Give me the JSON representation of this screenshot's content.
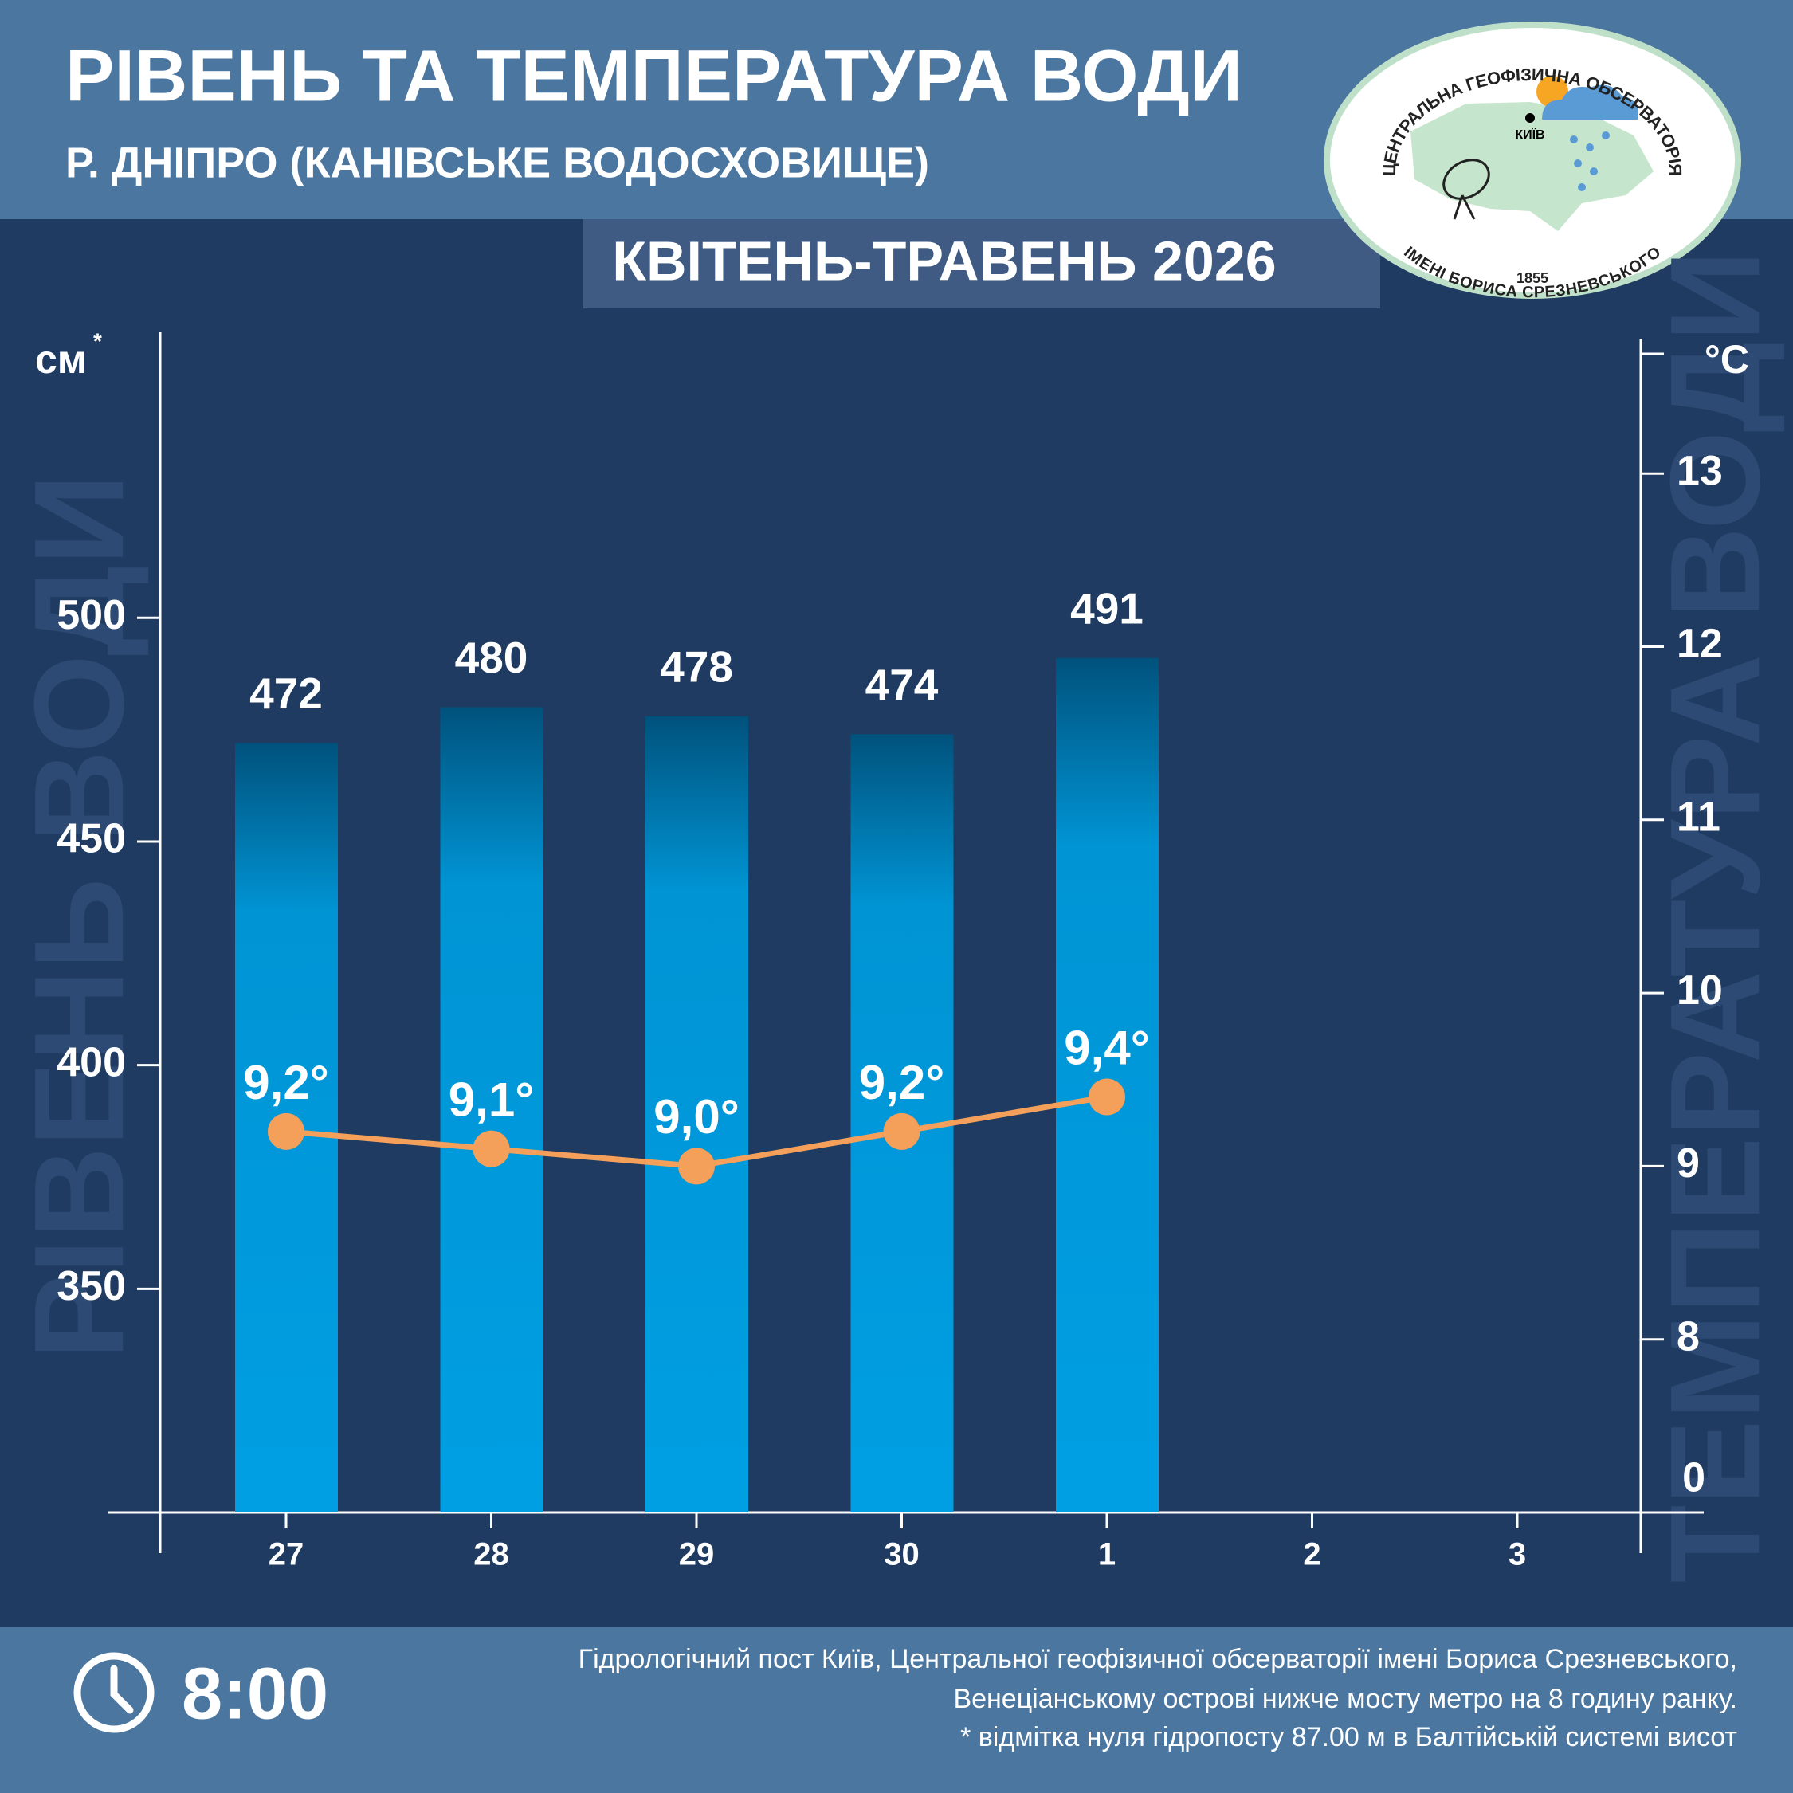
{
  "chart_data": {
    "type": "bar",
    "title": "РІВЕНЬ ТА ТЕМПЕРАТУРА ВОДИ",
    "subtitle": "Р. ДНІПРО (КАНІВСЬКЕ ВОДОСХОВИЩЕ)",
    "period": "КВІТЕНЬ-ТРАВЕНЬ 2026",
    "categories": [
      "27",
      "28",
      "29",
      "30",
      "1",
      "2",
      "3"
    ],
    "series": [
      {
        "type": "bar",
        "color": "#009fe3",
        "values": [
          472,
          480,
          478,
          474,
          491,
          null,
          null
        ]
      },
      {
        "type": "line",
        "axis": "y2",
        "color": "#f5a05a",
        "values": [
          9.2,
          9.1,
          9.0,
          9.2,
          9.4,
          null,
          null
        ],
        "value_labels": [
          "9,2°",
          "9,1°",
          "9,0°",
          "9,2°",
          "9,4°",
          null,
          null
        ]
      }
    ],
    "y_label": "РІВЕНЬ ВОДИ",
    "y_unit": "см",
    "y_unit_note": "*",
    "y2_label": "ТЕМПЕРАТУРА ВОДИ",
    "y2_unit": "°C",
    "ylim": [
      300,
      564
    ],
    "yticks": [
      350,
      400,
      450,
      500
    ],
    "y2lim": [
      7,
      13.82
    ],
    "y2ticks": [
      8,
      9,
      10,
      11,
      12,
      13
    ],
    "y2_break_tick": 0
  },
  "logo": {
    "top": "ЦЕНТРАЛЬНА ГЕОФІЗИЧНА ОБСЕРВАТОРІЯ",
    "bottom": "ІМЕНІ БОРИСА СРЕЗНЕВСЬКОГО",
    "year": "1855",
    "city": "КИЇВ"
  },
  "footer": {
    "time": "8:00",
    "notes": [
      "Гідрологічний пост Київ, Центральної геофізичної обсерваторії імені Бориса Срезневського,",
      "Венеціанському острові нижче мосту метро  на 8 годину ранку.",
      "* відмітка нуля гідропосту 87.00 м в Балтійській системі висот"
    ]
  }
}
